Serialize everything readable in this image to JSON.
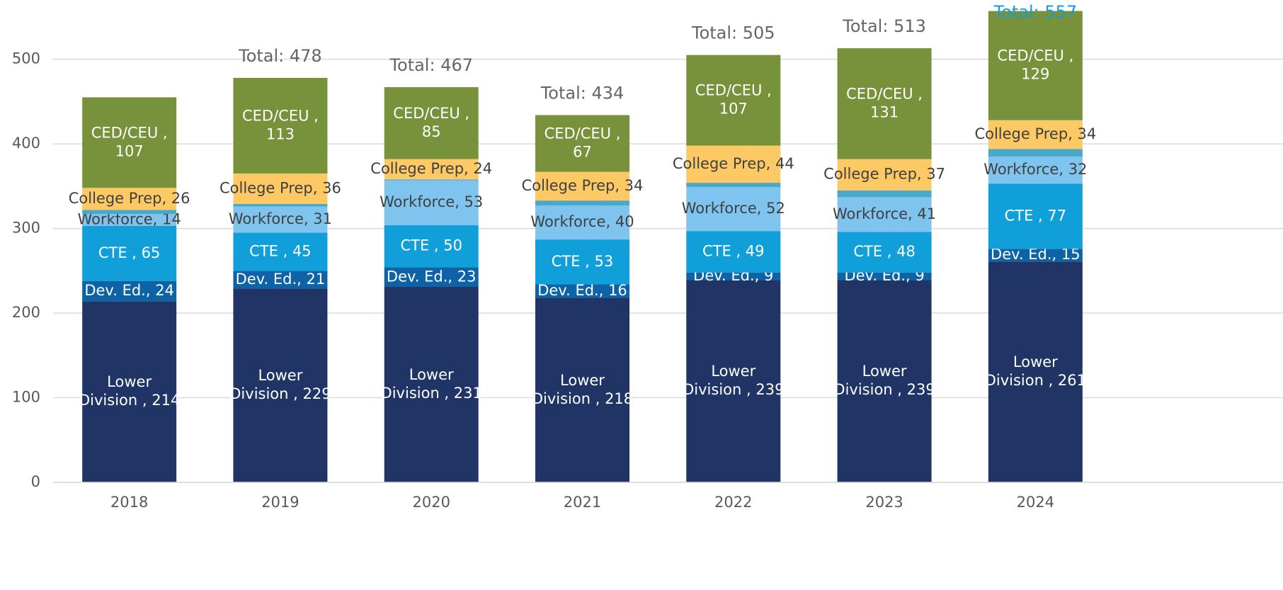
{
  "chart_data": {
    "type": "stacked_bar",
    "categories": [
      "2018",
      "2019",
      "2020",
      "2021",
      "2022",
      "2023",
      "2024"
    ],
    "series": [
      {
        "name": "Lower Division",
        "color": "#203566",
        "label_color": "#ffffff",
        "values": [
          214,
          229,
          231,
          218,
          239,
          239,
          261
        ],
        "value_labels": [
          "Lower\nDivision , 214",
          "Lower\nDivision , 229",
          "Lower\nDivision , 231",
          "Lower\nDivision , 218",
          "Lower\nDivision , 239",
          "Lower\nDivision , 239",
          "Lower\nDivision , 261"
        ]
      },
      {
        "name": "Dev. Ed.",
        "color": "#0d63a5",
        "label_color": "#ffffff",
        "values": [
          24,
          21,
          23,
          16,
          9,
          9,
          15
        ],
        "value_labels": [
          "Dev. Ed., 24",
          "Dev. Ed., 21",
          "Dev. Ed., 23",
          "Dev. Ed., 16",
          "Dev. Ed., 9",
          "Dev. Ed., 9",
          "Dev. Ed., 15"
        ]
      },
      {
        "name": "CTE",
        "color": "#119fda",
        "label_color": "#ffffff",
        "values": [
          65,
          45,
          50,
          53,
          49,
          48,
          77
        ],
        "value_labels": [
          "CTE , 65",
          "CTE , 45",
          "CTE , 50",
          "CTE , 53",
          "CTE , 49",
          "CTE , 48",
          "CTE , 77"
        ]
      },
      {
        "name": "Workforce",
        "color": "#7fc4ee",
        "label_color": "#404040",
        "values": [
          14,
          31,
          53,
          40,
          52,
          41,
          32
        ],
        "value_labels": [
          "Workforce, 14",
          "Workforce, 31",
          "Workforce, 53",
          "Workforce, 40",
          "Workforce, 52",
          "Workforce, 41",
          "Workforce, 32"
        ]
      },
      {
        "color": "#4aa8c9",
        "values": [
          5,
          3,
          1,
          6,
          5,
          8,
          9
        ]
      },
      {
        "name": "College Prep",
        "color": "#fdc965",
        "label_color": "#404040",
        "values": [
          26,
          36,
          24,
          34,
          44,
          37,
          34
        ],
        "value_labels": [
          "College Prep, 26",
          "College Prep, 36",
          "College Prep, 24",
          "College Prep, 34",
          "College Prep, 44",
          "College Prep, 37",
          "College Prep, 34"
        ]
      },
      {
        "name": "CED/CEU",
        "color": "#77923a",
        "label_color": "#ffffff",
        "values": [
          107,
          113,
          85,
          67,
          107,
          131,
          129
        ],
        "value_labels": [
          "CED/CEU ,\n107",
          "CED/CEU ,\n113",
          "CED/CEU ,\n85",
          "CED/CEU ,\n67",
          "CED/CEU ,\n107",
          "CED/CEU ,\n131",
          "CED/CEU ,\n129"
        ]
      }
    ],
    "totals": [
      null,
      478,
      467,
      434,
      505,
      513,
      557
    ],
    "total_labels": [
      null,
      "Total: 478",
      "Total: 467",
      "Total: 434",
      "Total: 505",
      "Total: 513",
      "Total: 557"
    ],
    "total_label_colors": [
      null,
      "#666666",
      "#666666",
      "#666666",
      "#666666",
      "#666666",
      "#1a9bd7"
    ],
    "ylim": [
      0,
      570
    ],
    "yticks": [
      0,
      100,
      200,
      300,
      400,
      500
    ],
    "grid": true
  }
}
